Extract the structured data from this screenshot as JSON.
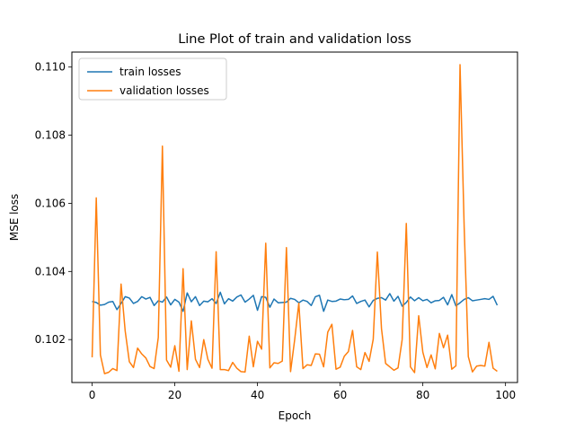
{
  "chart_data": {
    "type": "line",
    "title": "Line Plot of train and validation loss",
    "xlabel": "Epoch",
    "ylabel": "MSE loss",
    "xlim": [
      -4.9,
      102.9
    ],
    "ylim": [
      0.10074,
      0.11044
    ],
    "xticks": [
      0,
      20,
      40,
      60,
      80,
      100
    ],
    "yticks": [
      0.102,
      0.104,
      0.106,
      0.108,
      0.11
    ],
    "ytick_labels": [
      "0.102",
      "0.104",
      "0.106",
      "0.108",
      "0.110"
    ],
    "grid": false,
    "legend_position": "upper left",
    "x": [
      0,
      1,
      2,
      3,
      4,
      5,
      6,
      7,
      8,
      9,
      10,
      11,
      12,
      13,
      14,
      15,
      16,
      17,
      18,
      19,
      20,
      21,
      22,
      23,
      24,
      25,
      26,
      27,
      28,
      29,
      30,
      31,
      32,
      33,
      34,
      35,
      36,
      37,
      38,
      39,
      40,
      41,
      42,
      43,
      44,
      45,
      46,
      47,
      48,
      49,
      50,
      51,
      52,
      53,
      54,
      55,
      56,
      57,
      58,
      59,
      60,
      61,
      62,
      63,
      64,
      65,
      66,
      67,
      68,
      69,
      70,
      71,
      72,
      73,
      74,
      75,
      76,
      77,
      78,
      79,
      80,
      81,
      82,
      83,
      84,
      85,
      86,
      87,
      88,
      89,
      90,
      91,
      92,
      93,
      94,
      95,
      96,
      97,
      98
    ],
    "series": [
      {
        "name": "train losses",
        "color": "#1f77b4",
        "values": [
          0.10312,
          0.10309,
          0.10301,
          0.10303,
          0.1031,
          0.10312,
          0.10288,
          0.10306,
          0.10326,
          0.10322,
          0.10306,
          0.10312,
          0.10326,
          0.10319,
          0.10324,
          0.103,
          0.10314,
          0.1031,
          0.10325,
          0.10302,
          0.10318,
          0.1031,
          0.10283,
          0.10337,
          0.10311,
          0.10326,
          0.103,
          0.10313,
          0.10311,
          0.1032,
          0.10306,
          0.10339,
          0.10305,
          0.1032,
          0.10313,
          0.10325,
          0.10331,
          0.1031,
          0.10319,
          0.1033,
          0.10286,
          0.10326,
          0.10324,
          0.10295,
          0.10319,
          0.10308,
          0.10309,
          0.1031,
          0.10321,
          0.10318,
          0.10308,
          0.10316,
          0.10312,
          0.103,
          0.10326,
          0.1033,
          0.10283,
          0.10316,
          0.10312,
          0.10313,
          0.10319,
          0.10317,
          0.10318,
          0.10328,
          0.10306,
          0.10312,
          0.10316,
          0.10296,
          0.10315,
          0.10321,
          0.10323,
          0.10316,
          0.10335,
          0.10313,
          0.10327,
          0.10298,
          0.10309,
          0.10325,
          0.10314,
          0.10323,
          0.10314,
          0.10318,
          0.10308,
          0.10314,
          0.10315,
          0.10324,
          0.10302,
          0.10332,
          0.10299,
          0.10308,
          0.10318,
          0.10323,
          0.10314,
          0.10316,
          0.10318,
          0.1032,
          0.10318,
          0.10327,
          0.10301
        ]
      },
      {
        "name": "validation losses",
        "color": "#ff7f0e",
        "values": [
          0.10148,
          0.10616,
          0.10155,
          0.101,
          0.10104,
          0.10115,
          0.10109,
          0.10363,
          0.10225,
          0.10135,
          0.10118,
          0.10175,
          0.10158,
          0.10146,
          0.10121,
          0.10115,
          0.10206,
          0.10768,
          0.1014,
          0.10119,
          0.10182,
          0.10107,
          0.10408,
          0.10112,
          0.10255,
          0.10142,
          0.10118,
          0.102,
          0.10142,
          0.10116,
          0.10458,
          0.10112,
          0.10112,
          0.10109,
          0.10133,
          0.10116,
          0.10106,
          0.10105,
          0.1021,
          0.1012,
          0.10195,
          0.10172,
          0.10483,
          0.10117,
          0.10132,
          0.1013,
          0.10137,
          0.1047,
          0.10106,
          0.102,
          0.10307,
          0.10115,
          0.10126,
          0.10124,
          0.10158,
          0.10157,
          0.1012,
          0.10222,
          0.10245,
          0.10113,
          0.10119,
          0.10151,
          0.10165,
          0.10227,
          0.1012,
          0.10112,
          0.10162,
          0.10136,
          0.10201,
          0.10457,
          0.10232,
          0.1013,
          0.1012,
          0.1011,
          0.10117,
          0.102,
          0.10541,
          0.1012,
          0.10103,
          0.1027,
          0.10163,
          0.10118,
          0.10155,
          0.10114,
          0.10218,
          0.10176,
          0.10213,
          0.10113,
          0.10123,
          0.11007,
          0.1053,
          0.1015,
          0.10105,
          0.10122,
          0.10124,
          0.10122,
          0.10192,
          0.10116,
          0.10107
        ]
      }
    ]
  }
}
